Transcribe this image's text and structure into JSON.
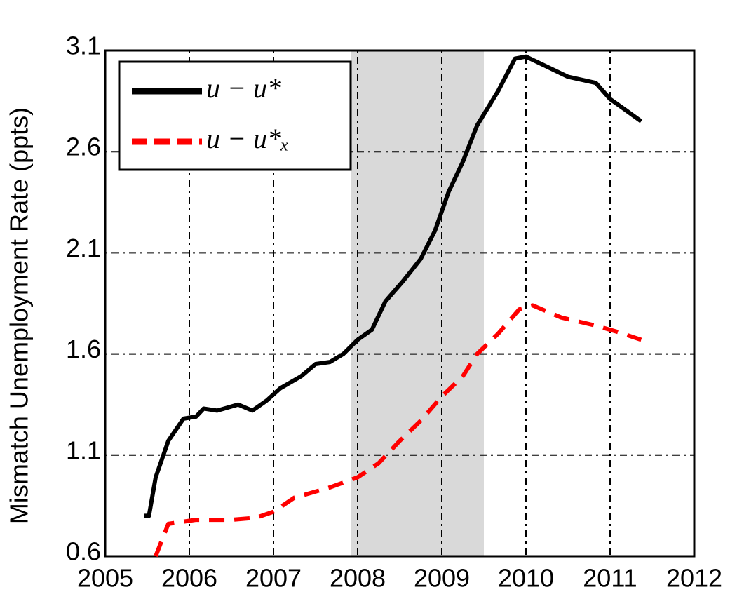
{
  "chart_data": {
    "type": "line",
    "y_label": "Mismatch Unemployment Rate (ppts)",
    "xlim": [
      2005,
      2012
    ],
    "xticks": [
      2005,
      2006,
      2007,
      2008,
      2009,
      2010,
      2011,
      2012
    ],
    "ylim": [
      0.6,
      3.1
    ],
    "yticks": [
      0.6,
      1.1,
      1.6,
      2.1,
      2.6,
      3.1
    ],
    "grid": true,
    "shade": [
      2007.92,
      2009.5
    ],
    "shade_color": "#d9d9d9",
    "legend": "upper left",
    "series": [
      {
        "name": "u − u*",
        "color": "#000000",
        "style": "solid",
        "x": [
          2005.46,
          2005.52,
          2005.6,
          2005.75,
          2005.93,
          2006.08,
          2006.17,
          2006.33,
          2006.58,
          2006.75,
          2006.92,
          2007.08,
          2007.33,
          2007.5,
          2007.67,
          2007.83,
          2008.0,
          2008.17,
          2008.33,
          2008.54,
          2008.75,
          2008.92,
          2009.08,
          2009.25,
          2009.42,
          2009.67,
          2009.87,
          2010.0,
          2010.25,
          2010.5,
          2010.83,
          2011.0,
          2011.17,
          2011.37
        ],
        "values": [
          0.8,
          0.8,
          0.99,
          1.17,
          1.28,
          1.29,
          1.33,
          1.32,
          1.35,
          1.32,
          1.37,
          1.43,
          1.49,
          1.55,
          1.56,
          1.6,
          1.67,
          1.72,
          1.86,
          1.96,
          2.07,
          2.21,
          2.4,
          2.55,
          2.73,
          2.9,
          3.06,
          3.07,
          3.02,
          2.97,
          2.94,
          2.86,
          2.81,
          2.75
        ]
      },
      {
        "name": "u − u*ₓ",
        "color": "#ff0000",
        "style": "dashed",
        "x": [
          2005.6,
          2005.75,
          2006.08,
          2006.5,
          2006.79,
          2007.0,
          2007.25,
          2007.42,
          2007.67,
          2008.0,
          2008.25,
          2008.5,
          2008.75,
          2009.0,
          2009.25,
          2009.42,
          2009.67,
          2009.92,
          2010.08,
          2010.42,
          2010.83,
          2011.08,
          2011.37
        ],
        "values": [
          0.6,
          0.76,
          0.78,
          0.78,
          0.79,
          0.82,
          0.89,
          0.91,
          0.94,
          0.99,
          1.06,
          1.17,
          1.27,
          1.39,
          1.49,
          1.6,
          1.7,
          1.82,
          1.84,
          1.78,
          1.74,
          1.71,
          1.67
        ]
      }
    ]
  }
}
